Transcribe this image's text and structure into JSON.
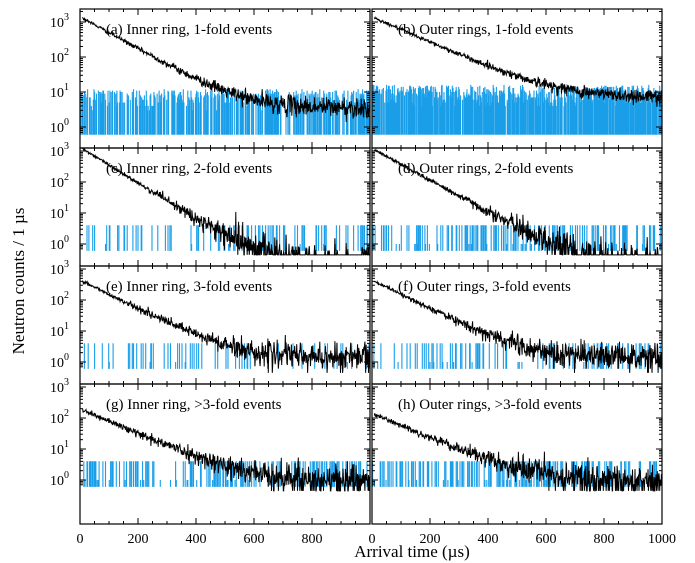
{
  "chart_data": {
    "type": "line",
    "xlabel": "Arrival time (µs)",
    "ylabel": "Neutron counts / 1 µs",
    "xlim": [
      0,
      1000
    ],
    "ylim": [
      0.6,
      2000
    ],
    "yscale": "log",
    "x_ticks": [
      "0",
      "200",
      "400",
      "600",
      "800",
      "1000"
    ],
    "x_ticks_left_panel": [
      "0",
      "200",
      "400",
      "600",
      "800"
    ],
    "y_ticks": [
      {
        "base": "10",
        "exp": "0",
        "value": 1
      },
      {
        "base": "10",
        "exp": "1",
        "value": 10
      },
      {
        "base": "10",
        "exp": "2",
        "value": 100
      },
      {
        "base": "10",
        "exp": "3",
        "value": 1000
      }
    ],
    "colors": {
      "signal": "#000000",
      "background": "#1a9ee8"
    },
    "panels": [
      {
        "label": "(a) Inner ring, 1-fold events",
        "peak": 1300,
        "tau": 95,
        "floor": 3.5,
        "bg_max": 12,
        "bg_density": 0.62
      },
      {
        "label": "(b) Outer rings, 1-fold events",
        "peak": 1300,
        "tau": 120,
        "floor": 7,
        "bg_max": 16,
        "bg_density": 0.9
      },
      {
        "label": "(c) Inner ring, 2-fold events",
        "peak": 1200,
        "tau": 75,
        "floor": 0.3,
        "bg_max": 4,
        "bg_density": 0.2
      },
      {
        "label": "(d) Outer rings, 2-fold events",
        "peak": 1100,
        "tau": 85,
        "floor": 0.3,
        "bg_max": 4,
        "bg_density": 0.3
      },
      {
        "label": "(e) Inner ring, 3-fold events",
        "peak": 400,
        "tau": 95,
        "floor": 1.4,
        "bg_max": 4,
        "bg_density": 0.12
      },
      {
        "label": "(f) Outer rings, 3-fold events",
        "peak": 400,
        "tau": 95,
        "floor": 1.4,
        "bg_max": 4,
        "bg_density": 0.2
      },
      {
        "label": "(g) Inner ring, >3-fold events",
        "peak": 180,
        "tau": 110,
        "floor": 0.9,
        "bg_max": 4,
        "bg_density": 0.3
      },
      {
        "label": "(h) Outer rings, >3-fold events",
        "peak": 130,
        "tau": 110,
        "floor": 0.9,
        "bg_max": 4,
        "bg_density": 0.35
      }
    ]
  }
}
